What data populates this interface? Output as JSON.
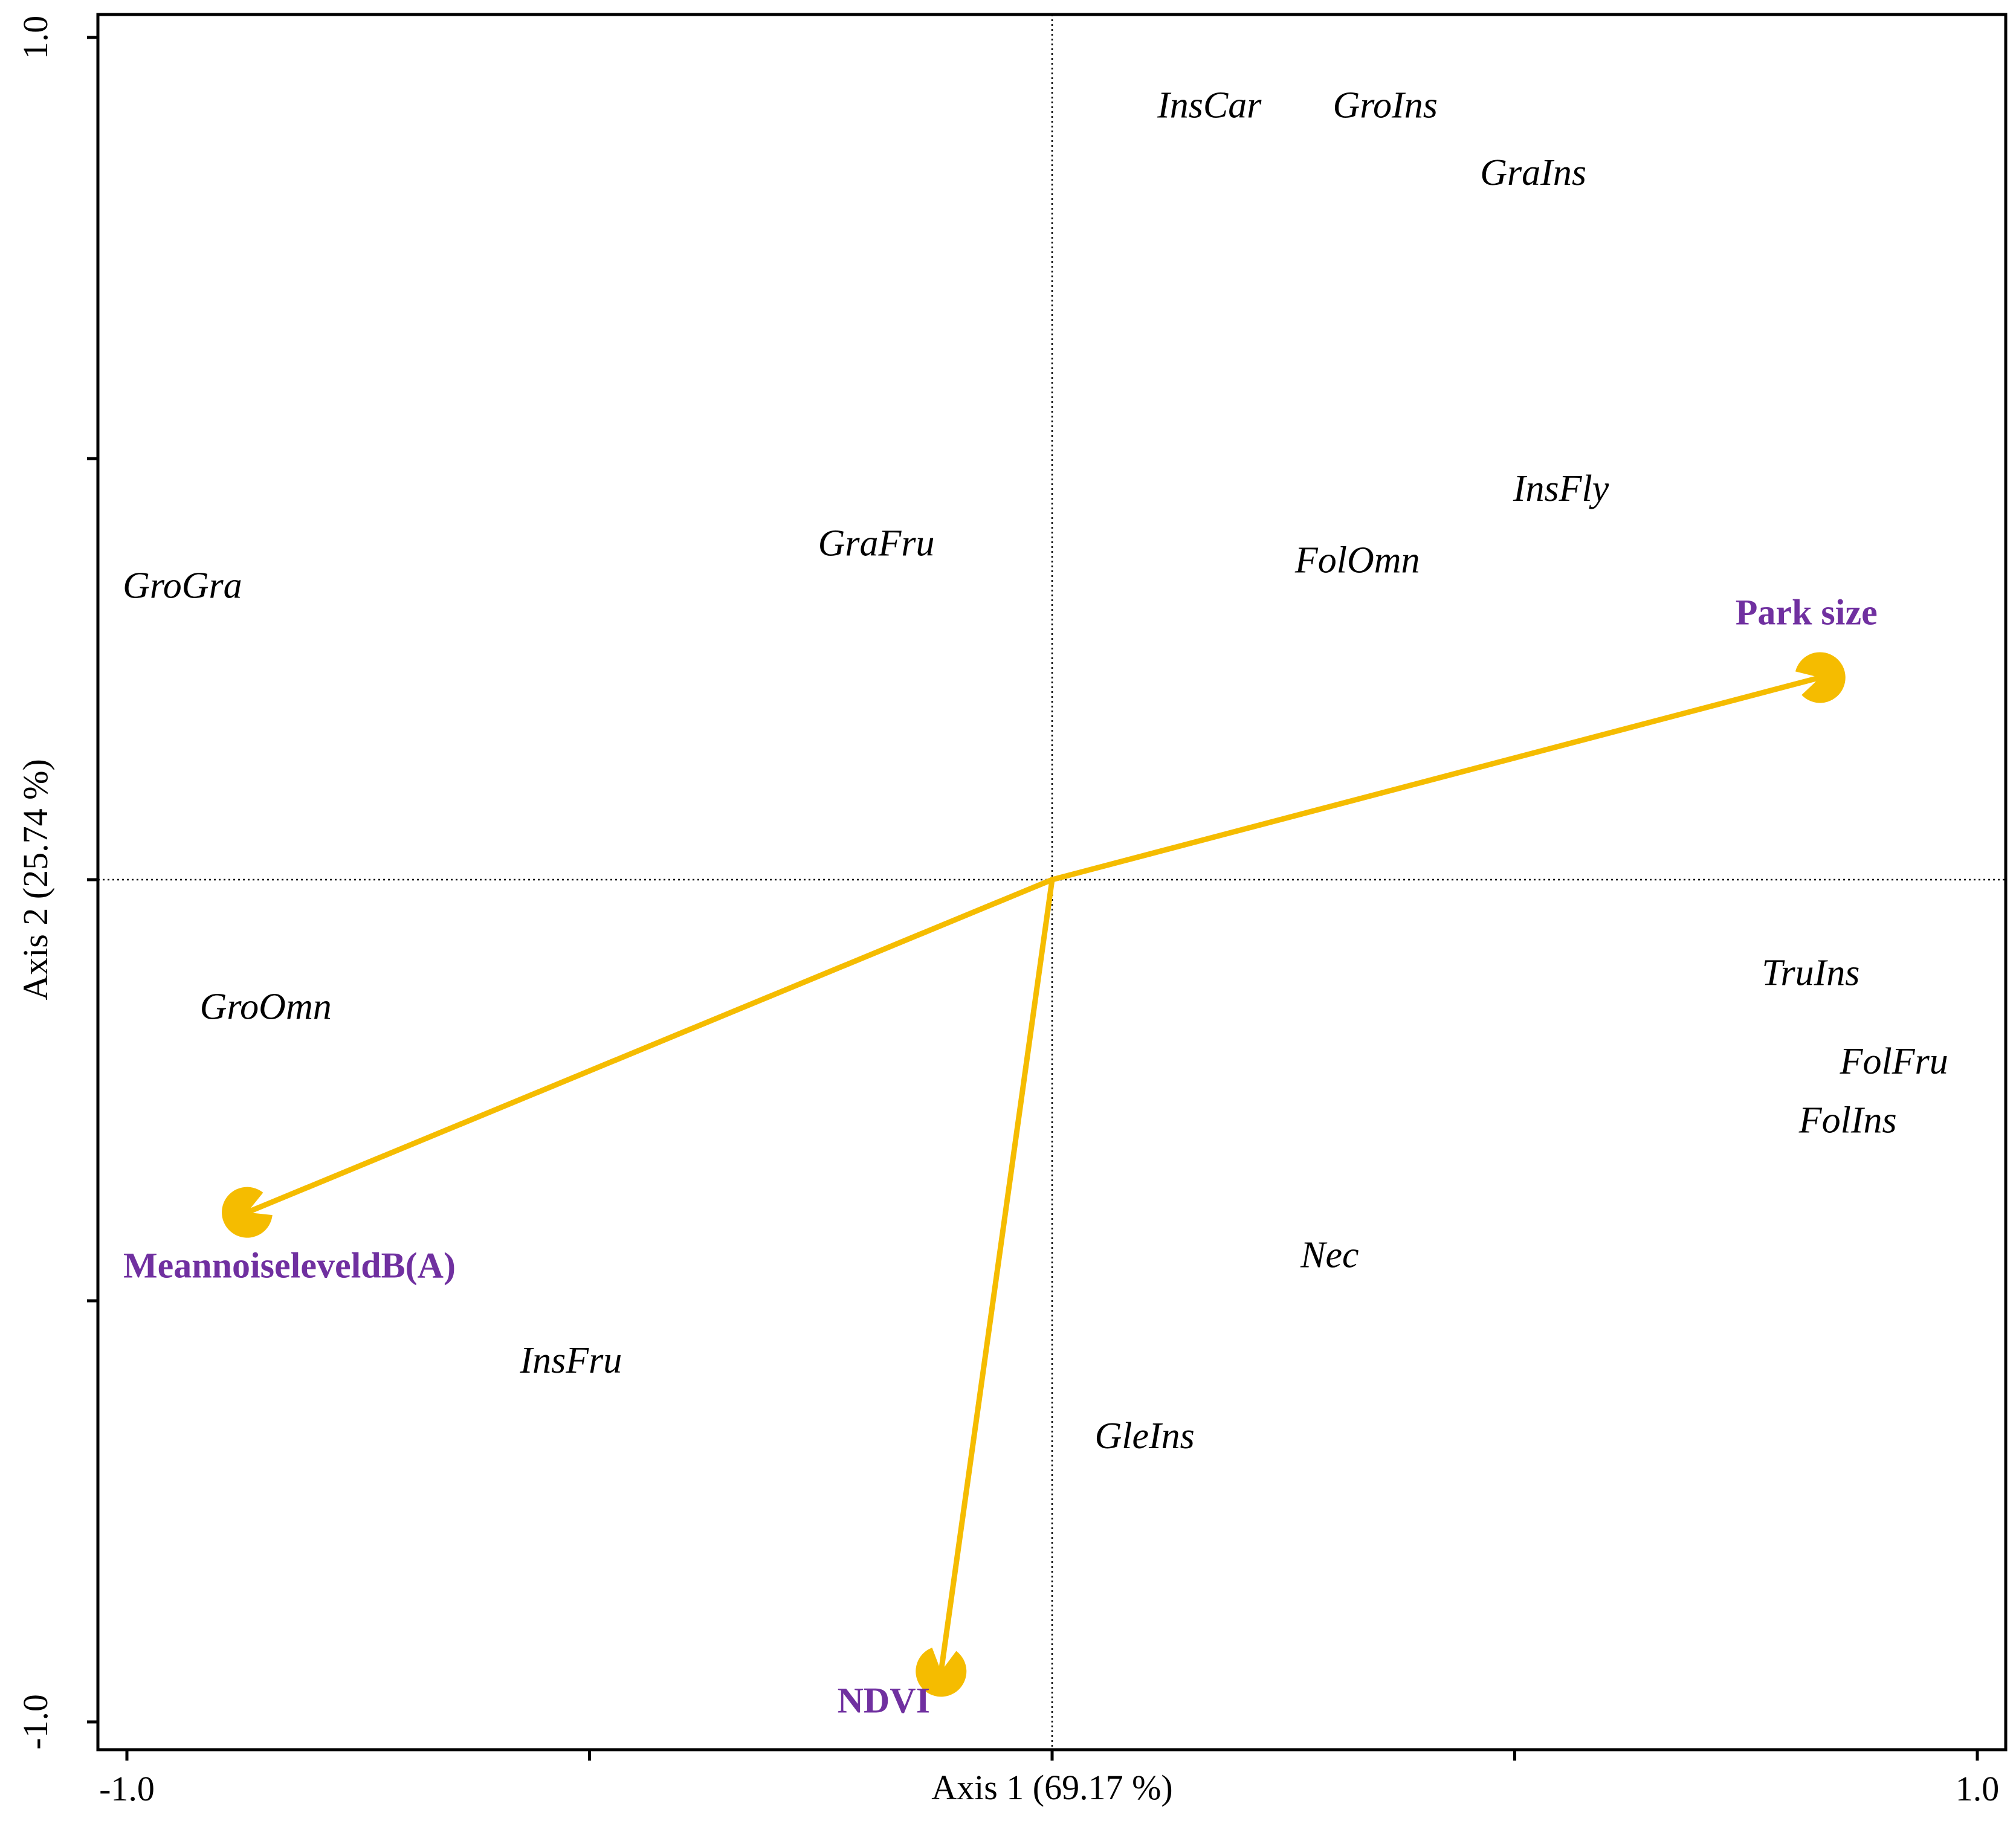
{
  "chart_data": {
    "type": "scatter",
    "subtype": "ordination-biplot",
    "title": "",
    "xlabel": "Axis 1 (69.17 %)",
    "ylabel": "Axis 2 (25.74 %)",
    "xlim": [
      -1.0,
      1.0
    ],
    "ylim": [
      -1.0,
      1.0
    ],
    "x_ticks": [
      -1.0,
      -0.5,
      0,
      0.5,
      1.0
    ],
    "y_ticks": [
      -1.0,
      -0.5,
      0,
      0.5,
      1.0
    ],
    "x_tick_labels": [
      "-1.0",
      "",
      "",
      "",
      "1.0"
    ],
    "y_tick_labels": [
      "-1.0",
      "",
      "",
      "",
      "1.0"
    ],
    "reference_lines": {
      "x": 0,
      "y": 0,
      "style": "dotted"
    },
    "grid": false,
    "species_points": [
      {
        "label": "InsCar",
        "x": 0.17,
        "y": 0.915
      },
      {
        "label": "GroIns",
        "x": 0.36,
        "y": 0.915
      },
      {
        "label": "GraIns",
        "x": 0.52,
        "y": 0.835
      },
      {
        "label": "InsFly",
        "x": 0.55,
        "y": 0.46
      },
      {
        "label": "FolOmn",
        "x": 0.33,
        "y": 0.375
      },
      {
        "label": "GraFru",
        "x": -0.19,
        "y": 0.395
      },
      {
        "label": "GroGra",
        "x": -0.94,
        "y": 0.345
      },
      {
        "label": "GroOmn",
        "x": -0.85,
        "y": -0.155
      },
      {
        "label": "TruIns",
        "x": 0.82,
        "y": -0.115
      },
      {
        "label": "FolFru",
        "x": 0.91,
        "y": -0.22
      },
      {
        "label": "FolIns",
        "x": 0.86,
        "y": -0.29
      },
      {
        "label": "Nec",
        "x": 0.3,
        "y": -0.45
      },
      {
        "label": "InsFru",
        "x": -0.52,
        "y": -0.575
      },
      {
        "label": "GleIns",
        "x": 0.1,
        "y": -0.665
      }
    ],
    "environmental_vectors": [
      {
        "label": "Park size",
        "x": 0.83,
        "y": 0.24
      },
      {
        "label": "MeannoiseleveldB(A)",
        "x": -0.87,
        "y": -0.395
      },
      {
        "label": "NDVI",
        "x": -0.12,
        "y": -0.94
      }
    ],
    "vector_color": "#f5bc00",
    "vector_label_color": "#7030a0",
    "species_label_color": "#000000"
  }
}
